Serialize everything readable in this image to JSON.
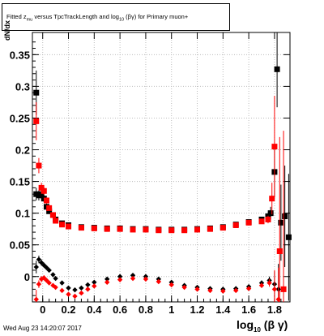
{
  "title": {
    "pre": "Fitted z",
    "sub1": "mu",
    "mid": " versus TpcTrackLength and log",
    "sub2": "10",
    "post": " (βγ) for Primary muon+"
  },
  "footer_date": "Wed Aug 23 14:20:07 2017",
  "xlabel": {
    "main": "log",
    "sub": "10",
    "rest": " (β γ)"
  },
  "ylabel": {
    "main": "dN/dx",
    "sub": ""
  },
  "colors": {
    "black_series": "#000000",
    "red_series": "#ff0000",
    "grid": "#bbbbbb"
  },
  "chart_data": {
    "type": "scatter",
    "xlim": [
      -0.08,
      1.92
    ],
    "ylim": [
      -0.04,
      0.385
    ],
    "x_ticks": [
      {
        "v": 0,
        "label": "0"
      },
      {
        "v": 0.2,
        "label": "0.2"
      },
      {
        "v": 0.4,
        "label": "0.4"
      },
      {
        "v": 0.6,
        "label": "0.6"
      },
      {
        "v": 0.8,
        "label": "0.8"
      },
      {
        "v": 1.0,
        "label": "1"
      },
      {
        "v": 1.2,
        "label": "1.2"
      },
      {
        "v": 1.4,
        "label": "1.4"
      },
      {
        "v": 1.6,
        "label": "1.6"
      },
      {
        "v": 1.8,
        "label": "1.8"
      }
    ],
    "y_ticks": [
      {
        "v": 0,
        "label": "0"
      },
      {
        "v": 0.05,
        "label": "0.05"
      },
      {
        "v": 0.1,
        "label": "0.1"
      },
      {
        "v": 0.15,
        "label": "0.15"
      },
      {
        "v": 0.2,
        "label": "0.2"
      },
      {
        "v": 0.25,
        "label": "0.25"
      },
      {
        "v": 0.3,
        "label": "0.3"
      },
      {
        "v": 0.35,
        "label": "0.35"
      }
    ],
    "grid": true,
    "series": [
      {
        "color": "#000000",
        "band": "upper",
        "points": [
          [
            -0.05,
            0.29,
            0.035
          ],
          [
            -0.05,
            0.13,
            0.01
          ],
          [
            -0.03,
            0.128,
            0.008
          ],
          [
            -0.01,
            0.13,
            0.008
          ],
          [
            0.01,
            0.123,
            0.006
          ],
          [
            0.03,
            0.11,
            0.005
          ],
          [
            0.05,
            0.103,
            0.004
          ],
          [
            0.08,
            0.097,
            0.003
          ],
          [
            0.1,
            0.09,
            0.002
          ],
          [
            0.15,
            0.084,
            0.002
          ],
          [
            0.2,
            0.081,
            0.002
          ],
          [
            0.3,
            0.078,
            0.001
          ],
          [
            0.4,
            0.077,
            0.001
          ],
          [
            0.5,
            0.076,
            0.001
          ],
          [
            0.6,
            0.076,
            0.001
          ],
          [
            0.7,
            0.075,
            0.001
          ],
          [
            0.8,
            0.075,
            0.001
          ],
          [
            0.9,
            0.074,
            0.001
          ],
          [
            1.0,
            0.074,
            0.001
          ],
          [
            1.1,
            0.074,
            0.001
          ],
          [
            1.2,
            0.075,
            0.001
          ],
          [
            1.3,
            0.076,
            0.001
          ],
          [
            1.4,
            0.078,
            0.001
          ],
          [
            1.5,
            0.082,
            0.001
          ],
          [
            1.6,
            0.086,
            0.002
          ],
          [
            1.7,
            0.09,
            0.003
          ],
          [
            1.75,
            0.095,
            0.006
          ],
          [
            1.77,
            0.1,
            0.01
          ],
          [
            1.8,
            0.165,
            0.04
          ],
          [
            1.82,
            0.327,
            0.06
          ],
          [
            1.85,
            0.085,
            0.06
          ],
          [
            1.88,
            0.095,
            0.08
          ],
          [
            1.91,
            0.062,
            0.1
          ]
        ]
      },
      {
        "color": "#ff0000",
        "band": "upper",
        "points": [
          [
            -0.05,
            0.245,
            0.03
          ],
          [
            -0.03,
            0.175,
            0.012
          ],
          [
            -0.01,
            0.14,
            0.008
          ],
          [
            0.01,
            0.135,
            0.006
          ],
          [
            0.03,
            0.12,
            0.005
          ],
          [
            0.05,
            0.108,
            0.004
          ],
          [
            0.08,
            0.097,
            0.003
          ],
          [
            0.1,
            0.088,
            0.002
          ],
          [
            0.15,
            0.082,
            0.002
          ],
          [
            0.2,
            0.079,
            0.001
          ],
          [
            0.3,
            0.077,
            0.001
          ],
          [
            0.4,
            0.076,
            0.001
          ],
          [
            0.5,
            0.075,
            0.001
          ],
          [
            0.6,
            0.075,
            0.001
          ],
          [
            0.7,
            0.074,
            0.001
          ],
          [
            0.8,
            0.074,
            0.001
          ],
          [
            0.9,
            0.073,
            0.001
          ],
          [
            1.0,
            0.073,
            0.001
          ],
          [
            1.1,
            0.073,
            0.001
          ],
          [
            1.2,
            0.074,
            0.001
          ],
          [
            1.3,
            0.075,
            0.001
          ],
          [
            1.4,
            0.077,
            0.001
          ],
          [
            1.5,
            0.081,
            0.001
          ],
          [
            1.6,
            0.085,
            0.002
          ],
          [
            1.7,
            0.087,
            0.003
          ],
          [
            1.75,
            0.09,
            0.006
          ],
          [
            1.78,
            0.123,
            0.025
          ],
          [
            1.8,
            0.205,
            0.08
          ],
          [
            1.84,
            0.04,
            0.18
          ],
          [
            1.87,
            -0.02,
            0.25
          ]
        ]
      },
      {
        "color": "#000000",
        "band": "lower",
        "points": [
          [
            -0.05,
            0.015,
            0.01
          ],
          [
            -0.03,
            0.027,
            0.006
          ],
          [
            -0.01,
            0.022,
            0.005
          ],
          [
            0.01,
            0.018,
            0.004
          ],
          [
            0.03,
            0.014,
            0.003
          ],
          [
            0.05,
            0.01,
            0.003
          ],
          [
            0.08,
            0.003,
            0.003
          ],
          [
            0.1,
            -0.003,
            0.003
          ],
          [
            0.15,
            -0.01,
            0.002
          ],
          [
            0.2,
            -0.018,
            0.002
          ],
          [
            0.25,
            -0.021,
            0.002
          ],
          [
            0.3,
            -0.018,
            0.002
          ],
          [
            0.35,
            -0.013,
            0.002
          ],
          [
            0.4,
            -0.009,
            0.002
          ],
          [
            0.5,
            -0.004,
            0.002
          ],
          [
            0.6,
            0.0,
            0.002
          ],
          [
            0.7,
            0.002,
            0.002
          ],
          [
            0.8,
            0.0,
            0.002
          ],
          [
            0.9,
            -0.004,
            0.002
          ],
          [
            1.0,
            -0.009,
            0.002
          ],
          [
            1.1,
            -0.014,
            0.002
          ],
          [
            1.2,
            -0.017,
            0.002
          ],
          [
            1.3,
            -0.019,
            0.002
          ],
          [
            1.4,
            -0.02,
            0.002
          ],
          [
            1.5,
            -0.019,
            0.002
          ],
          [
            1.6,
            -0.016,
            0.003
          ],
          [
            1.7,
            -0.01,
            0.004
          ],
          [
            1.76,
            -0.006,
            0.006
          ],
          [
            1.8,
            -0.012,
            0.02
          ],
          [
            1.83,
            -0.02,
            0.04
          ]
        ]
      },
      {
        "color": "#ff0000",
        "band": "lower",
        "points": [
          [
            -0.05,
            -0.036,
            0.015
          ],
          [
            -0.03,
            -0.012,
            0.006
          ],
          [
            -0.01,
            -0.004,
            0.005
          ],
          [
            0.01,
            -0.002,
            0.004
          ],
          [
            0.03,
            -0.006,
            0.003
          ],
          [
            0.05,
            -0.01,
            0.003
          ],
          [
            0.08,
            -0.014,
            0.003
          ],
          [
            0.1,
            -0.017,
            0.003
          ],
          [
            0.15,
            -0.022,
            0.002
          ],
          [
            0.2,
            -0.028,
            0.002
          ],
          [
            0.25,
            -0.031,
            0.002
          ],
          [
            0.3,
            -0.026,
            0.002
          ],
          [
            0.35,
            -0.02,
            0.002
          ],
          [
            0.4,
            -0.015,
            0.002
          ],
          [
            0.5,
            -0.009,
            0.002
          ],
          [
            0.6,
            -0.005,
            0.002
          ],
          [
            0.7,
            -0.003,
            0.002
          ],
          [
            0.8,
            -0.004,
            0.002
          ],
          [
            0.9,
            -0.008,
            0.002
          ],
          [
            1.0,
            -0.013,
            0.002
          ],
          [
            1.1,
            -0.017,
            0.002
          ],
          [
            1.2,
            -0.02,
            0.002
          ],
          [
            1.3,
            -0.022,
            0.002
          ],
          [
            1.4,
            -0.023,
            0.002
          ],
          [
            1.5,
            -0.022,
            0.002
          ],
          [
            1.6,
            -0.019,
            0.003
          ],
          [
            1.7,
            -0.014,
            0.004
          ],
          [
            1.76,
            -0.01,
            0.006
          ],
          [
            1.8,
            -0.02,
            0.03
          ],
          [
            1.83,
            -0.036,
            0.05
          ]
        ]
      }
    ]
  }
}
